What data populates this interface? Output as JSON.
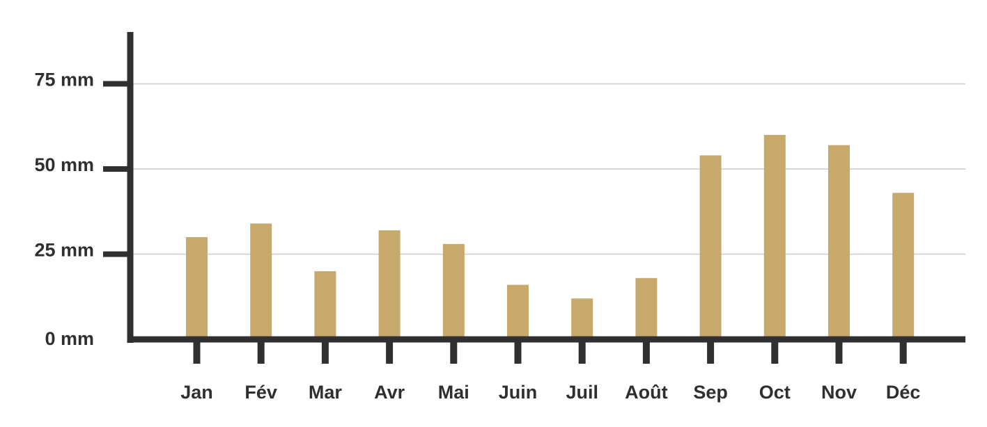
{
  "colors": {
    "bar": "#c7a96c",
    "axis": "#303030",
    "grid": "#cccccc",
    "text": "#2f2f2f",
    "background": "#ffffff"
  },
  "chart_data": {
    "type": "bar",
    "title": "",
    "xlabel": "",
    "ylabel": "",
    "categories": [
      "Jan",
      "Fév",
      "Mar",
      "Avr",
      "Mai",
      "Juin",
      "Juil",
      "Août",
      "Sep",
      "Oct",
      "Nov",
      "Déc"
    ],
    "values": [
      30,
      34,
      20,
      32,
      28,
      16,
      12,
      18,
      54,
      60,
      57,
      43
    ],
    "ylim": [
      0,
      90
    ],
    "yticks": [
      0,
      25,
      50,
      75
    ],
    "ytick_labels": [
      "0 mm",
      "25 mm",
      "50 mm",
      "75 mm"
    ],
    "grid": true
  }
}
